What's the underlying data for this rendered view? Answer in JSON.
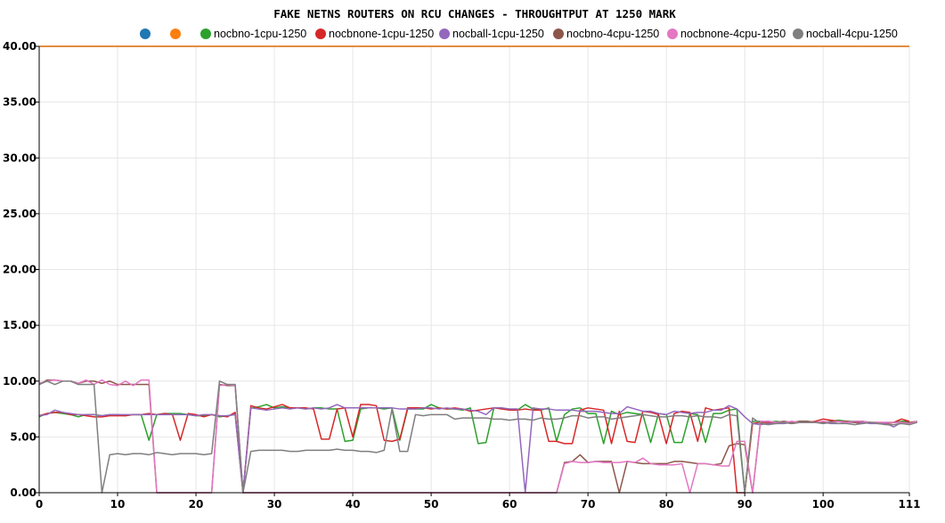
{
  "chart_data": {
    "type": "line",
    "title": "FAKE NETNS ROUTERS ON RCU CHANGES - THROUGHTPUT AT 1250 MARK",
    "xlabel": "",
    "ylabel": "",
    "xlim": [
      0,
      111
    ],
    "ylim": [
      0,
      40
    ],
    "y_ticks": [
      "0.00",
      "5.00",
      "10.00",
      "15.00",
      "20.00",
      "25.00",
      "30.00",
      "35.00",
      "40.00"
    ],
    "x_ticks": [
      "0",
      "10",
      "20",
      "30",
      "40",
      "50",
      "60",
      "70",
      "80",
      "90",
      "100",
      "111"
    ],
    "grid": true,
    "legend_position": "top",
    "series": [
      {
        "name": "",
        "color": "#1f77b4",
        "values": [
          40,
          40,
          40,
          40,
          40,
          40,
          40,
          40,
          40,
          40,
          40,
          40,
          40,
          40,
          40,
          40,
          40,
          40,
          40,
          40,
          40,
          40,
          40,
          40,
          40,
          40,
          40,
          40,
          40,
          40,
          40,
          40,
          40,
          40,
          40,
          40,
          40,
          40,
          40,
          40,
          40,
          40,
          40,
          40,
          40,
          40,
          40,
          40,
          40,
          40,
          40,
          40,
          40,
          40,
          40,
          40,
          40,
          40,
          40,
          40,
          40,
          40,
          40,
          40,
          40,
          40,
          40,
          40,
          40,
          40,
          40,
          40,
          40,
          40,
          40,
          40,
          40,
          40,
          40,
          40,
          40,
          40,
          40,
          40,
          40,
          40,
          40,
          40,
          40,
          40,
          40,
          40,
          40,
          40,
          40,
          40,
          40,
          40,
          40,
          40,
          40,
          40,
          40,
          40,
          40,
          40,
          40,
          40,
          40,
          40,
          40,
          40
        ]
      },
      {
        "name": "",
        "color": "#ff7f0e",
        "values": [
          40,
          40,
          40,
          40,
          40,
          40,
          40,
          40,
          40,
          40,
          40,
          40,
          40,
          40,
          40,
          40,
          40,
          40,
          40,
          40,
          40,
          40,
          40,
          40,
          40,
          40,
          40,
          40,
          40,
          40,
          40,
          40,
          40,
          40,
          40,
          40,
          40,
          40,
          40,
          40,
          40,
          40,
          40,
          40,
          40,
          40,
          40,
          40,
          40,
          40,
          40,
          40,
          40,
          40,
          40,
          40,
          40,
          40,
          40,
          40,
          40,
          40,
          40,
          40,
          40,
          40,
          40,
          40,
          40,
          40,
          40,
          40,
          40,
          40,
          40,
          40,
          40,
          40,
          40,
          40,
          40,
          40,
          40,
          40,
          40,
          40,
          40,
          40,
          40,
          40,
          40,
          40,
          40,
          40,
          40,
          40,
          40,
          40,
          40,
          40,
          40,
          40,
          40,
          40,
          40,
          40,
          40,
          40,
          40,
          40,
          40,
          40
        ]
      },
      {
        "name": "nocbno-1cpu-1250",
        "color": "#2ca02c",
        "values": [
          6.8,
          7.1,
          7.2,
          7.1,
          7.0,
          6.8,
          7.0,
          7.0,
          6.9,
          7.0,
          7.0,
          6.9,
          7.0,
          7.0,
          4.7,
          7.0,
          7.1,
          7.1,
          7.1,
          7.0,
          6.9,
          6.9,
          7.0,
          6.8,
          6.9,
          7.0,
          0.0,
          7.6,
          7.7,
          7.9,
          7.6,
          7.7,
          7.6,
          7.6,
          7.5,
          7.6,
          7.6,
          7.5,
          7.5,
          4.6,
          4.7,
          7.5,
          7.6,
          7.6,
          7.5,
          7.6,
          4.7,
          7.5,
          7.5,
          7.5,
          7.9,
          7.6,
          7.5,
          7.5,
          7.4,
          7.6,
          4.4,
          4.5,
          7.6,
          7.6,
          7.5,
          7.4,
          7.9,
          7.5,
          7.4,
          7.6,
          4.6,
          7.0,
          7.5,
          7.6,
          7.1,
          7.1,
          4.4,
          7.3,
          7.0,
          7.2,
          7.1,
          7.0,
          4.5,
          7.1,
          7.0,
          4.5,
          4.5,
          7.1,
          7.0,
          4.5,
          7.1,
          7.1,
          7.4,
          7.5,
          0.0,
          6.4,
          6.4,
          6.3,
          6.4,
          6.3,
          6.3,
          6.4,
          6.4,
          6.3,
          6.3,
          6.4,
          6.5,
          6.4,
          6.4,
          6.4,
          6.3,
          6.3,
          6.2,
          6.3,
          6.4,
          6.4
        ]
      },
      {
        "name": "nocbnone-1cpu-1250",
        "color": "#d62728",
        "values": [
          6.9,
          7.1,
          7.2,
          7.2,
          7.0,
          7.0,
          6.9,
          6.8,
          6.8,
          6.9,
          6.9,
          6.9,
          7.0,
          7.0,
          7.1,
          7.0,
          7.1,
          7.0,
          4.7,
          7.1,
          7.0,
          6.8,
          7.0,
          6.9,
          6.8,
          7.2,
          0.0,
          7.8,
          7.6,
          7.5,
          7.7,
          7.9,
          7.6,
          7.6,
          7.6,
          7.5,
          4.8,
          4.8,
          7.5,
          7.6,
          5.0,
          7.9,
          7.9,
          7.8,
          4.7,
          4.6,
          4.8,
          7.6,
          7.6,
          7.6,
          7.5,
          7.6,
          7.5,
          7.6,
          7.5,
          7.3,
          7.4,
          7.5,
          7.6,
          7.5,
          7.4,
          7.4,
          7.5,
          7.4,
          7.4,
          4.6,
          4.6,
          4.4,
          4.4,
          7.4,
          7.6,
          7.5,
          7.4,
          4.4,
          7.3,
          4.6,
          4.5,
          7.3,
          7.2,
          7.0,
          4.4,
          7.1,
          7.3,
          7.2,
          4.6,
          7.6,
          7.4,
          7.5,
          7.6,
          0.0,
          0.0,
          6.2,
          6.3,
          6.3,
          6.2,
          6.3,
          6.2,
          6.3,
          6.3,
          6.4,
          6.6,
          6.5,
          6.4,
          6.4,
          6.3,
          6.2,
          6.3,
          6.2,
          6.2,
          6.3,
          6.6,
          6.4
        ]
      },
      {
        "name": "nocball-1cpu-1250",
        "color": "#9467bd",
        "values": [
          6.9,
          7.0,
          7.4,
          7.2,
          7.1,
          7.0,
          7.0,
          7.0,
          6.9,
          7.0,
          7.0,
          7.0,
          7.0,
          7.0,
          7.0,
          7.0,
          7.0,
          7.0,
          7.0,
          7.0,
          6.9,
          7.0,
          7.0,
          6.9,
          6.9,
          7.0,
          0.0,
          7.6,
          7.5,
          7.4,
          7.5,
          7.6,
          7.5,
          7.6,
          7.5,
          7.6,
          7.5,
          7.6,
          7.9,
          7.6,
          7.6,
          7.6,
          7.6,
          7.6,
          7.6,
          7.6,
          7.5,
          7.5,
          7.5,
          7.6,
          7.6,
          7.5,
          7.6,
          7.5,
          7.5,
          7.4,
          7.3,
          7.0,
          7.6,
          7.6,
          7.5,
          7.5,
          0.0,
          7.6,
          7.5,
          7.5,
          7.4,
          7.4,
          7.4,
          7.3,
          7.3,
          7.3,
          7.2,
          7.1,
          7.1,
          7.7,
          7.5,
          7.3,
          7.3,
          7.1,
          7.0,
          7.3,
          7.2,
          7.1,
          7.2,
          7.2,
          7.4,
          7.4,
          7.8,
          7.5,
          6.8,
          6.2,
          6.1,
          6.2,
          6.2,
          6.2,
          6.3,
          6.3,
          6.3,
          6.3,
          6.3,
          6.2,
          6.2,
          6.3,
          6.3,
          6.3,
          6.2,
          6.2,
          6.2,
          5.9,
          6.3,
          6.3
        ]
      },
      {
        "name": "nocbno-4cpu-1250",
        "color": "#8c564b",
        "values": [
          9.7,
          10.1,
          10.1,
          10.0,
          10.0,
          9.8,
          10.0,
          10.0,
          9.8,
          10.0,
          9.7,
          9.7,
          9.7,
          9.7,
          9.7,
          0.0,
          0.0,
          0.0,
          0.0,
          0.0,
          0.0,
          0.0,
          0.0,
          9.7,
          9.6,
          9.6,
          0.0,
          0.0,
          0.0,
          0.0,
          0.0,
          0.0,
          0.0,
          0.0,
          0.0,
          0.0,
          0.0,
          0.0,
          0.0,
          0.0,
          0.0,
          0.0,
          0.0,
          0.0,
          0.0,
          0.0,
          0.0,
          0.0,
          0.0,
          0.0,
          0.0,
          0.0,
          0.0,
          0.0,
          0.0,
          0.0,
          0.0,
          0.0,
          0.0,
          0.0,
          0.0,
          0.0,
          0.0,
          0.0,
          0.0,
          0.0,
          0.0,
          2.7,
          2.8,
          3.4,
          2.7,
          2.8,
          2.8,
          2.8,
          0.0,
          2.8,
          2.7,
          2.6,
          2.6,
          2.6,
          2.6,
          2.8,
          2.8,
          2.7,
          2.6,
          2.6,
          2.5,
          2.6,
          4.2,
          4.4,
          4.3,
          0.0,
          6.3,
          6.4,
          6.3,
          6.4,
          6.3,
          6.4,
          6.4,
          6.3,
          6.3,
          6.4,
          6.4,
          6.4,
          6.3,
          6.4,
          6.3,
          6.3,
          6.3,
          6.3,
          6.3,
          6.3,
          6.4
        ]
      },
      {
        "name": "nocbnone-4cpu-1250",
        "color": "#e377c2",
        "values": [
          9.8,
          10.0,
          10.1,
          10.0,
          10.0,
          9.8,
          10.1,
          9.7,
          10.1,
          9.7,
          9.6,
          10.0,
          9.6,
          10.1,
          10.1,
          0.0,
          0.0,
          0.0,
          0.0,
          0.0,
          0.0,
          0.0,
          0.0,
          9.6,
          9.7,
          9.6,
          0.0,
          0.0,
          0.0,
          0.0,
          0.0,
          0.0,
          0.0,
          0.0,
          0.0,
          0.0,
          0.0,
          0.0,
          0.0,
          0.0,
          0.0,
          0.0,
          0.0,
          0.0,
          0.0,
          0.0,
          0.0,
          0.0,
          0.0,
          0.0,
          0.0,
          0.0,
          0.0,
          0.0,
          0.0,
          0.0,
          0.0,
          0.0,
          0.0,
          0.0,
          0.0,
          0.0,
          0.0,
          0.0,
          0.0,
          0.0,
          0.0,
          2.6,
          2.8,
          2.7,
          2.7,
          2.8,
          2.7,
          2.7,
          2.7,
          2.8,
          2.7,
          3.1,
          2.6,
          2.5,
          2.5,
          2.5,
          2.6,
          0.0,
          2.6,
          2.6,
          2.5,
          2.4,
          2.4,
          4.6,
          4.6,
          0.0,
          6.4,
          6.4,
          6.3,
          6.3,
          6.4,
          6.3,
          6.3,
          6.3,
          6.4,
          6.3,
          6.4,
          6.3,
          6.4,
          6.4,
          6.3,
          6.3,
          6.3,
          6.3,
          6.3,
          6.2,
          6.4
        ]
      },
      {
        "name": "nocball-4cpu-1250",
        "color": "#7f7f7f",
        "values": [
          9.7,
          10.0,
          9.7,
          10.0,
          10.0,
          9.7,
          9.7,
          9.7,
          0.0,
          3.4,
          3.5,
          3.4,
          3.5,
          3.5,
          3.4,
          3.6,
          3.5,
          3.4,
          3.5,
          3.5,
          3.5,
          3.4,
          3.5,
          10.0,
          9.7,
          9.7,
          0.0,
          3.7,
          3.8,
          3.8,
          3.8,
          3.8,
          3.7,
          3.7,
          3.8,
          3.8,
          3.8,
          3.8,
          3.9,
          3.8,
          3.8,
          3.7,
          3.7,
          3.6,
          3.8,
          7.5,
          3.7,
          3.7,
          7.0,
          6.9,
          7.0,
          7.0,
          7.0,
          6.6,
          6.7,
          6.7,
          6.7,
          6.7,
          6.6,
          6.6,
          6.5,
          6.6,
          6.6,
          6.5,
          6.7,
          6.6,
          6.6,
          6.7,
          6.9,
          6.9,
          6.7,
          6.8,
          6.8,
          6.6,
          6.7,
          6.8,
          6.9,
          7.0,
          6.9,
          6.8,
          6.8,
          6.9,
          6.9,
          6.8,
          6.9,
          6.8,
          6.8,
          6.7,
          7.0,
          6.9,
          0.0,
          6.7,
          6.2,
          6.1,
          6.2,
          6.3,
          6.2,
          6.3,
          6.3,
          6.3,
          6.2,
          6.3,
          6.2,
          6.2,
          6.1,
          6.2,
          6.3,
          6.2,
          6.1,
          6.1,
          6.2,
          6.1,
          6.3
        ]
      }
    ]
  }
}
